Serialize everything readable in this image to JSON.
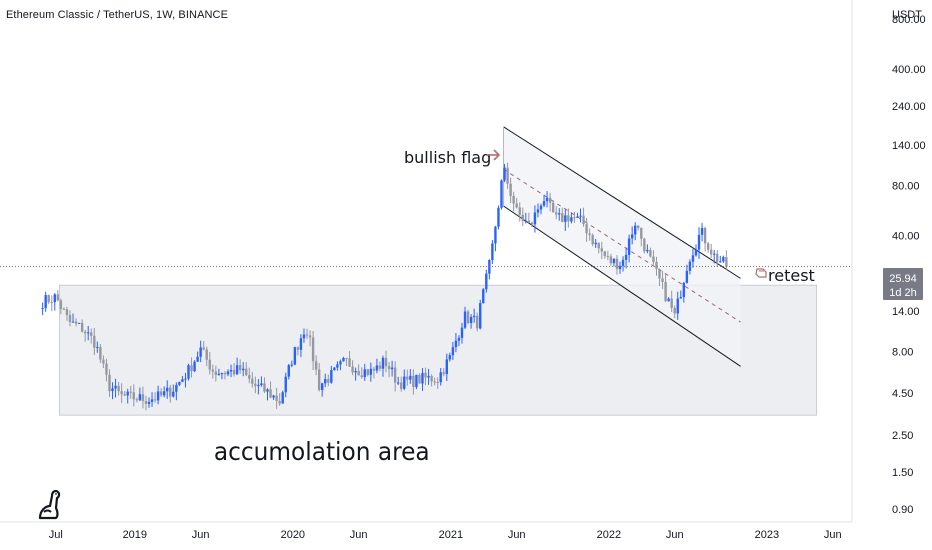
{
  "header": {
    "symbol_title": "Ethereum Classic / TetherUS, 1W, BINANCE"
  },
  "price_axis": {
    "currency": "USDT",
    "ticks": [
      "800.00",
      "400.00",
      "240.00",
      "140.00",
      "80.00",
      "40.00",
      "14.00",
      "8.00",
      "4.50",
      "2.50",
      "1.50",
      "0.90"
    ],
    "current_price": "25.94",
    "countdown": "1d 2h",
    "current_price_color": "#787b86"
  },
  "time_axis": {
    "ticks": [
      "Jul",
      "2019",
      "Jun",
      "2020",
      "Jun",
      "2021",
      "Jun",
      "2022",
      "Jun",
      "2023",
      "Jun"
    ]
  },
  "annotations": {
    "bullish_flag": "bullish flag",
    "retest": "retest",
    "accumulation": "accumolation area"
  },
  "colors": {
    "up": "#2962ff",
    "down": "#9598a1",
    "channel": "#131722",
    "zone_fill": "#eceef2",
    "arrow": "#b2706a"
  },
  "icons": {
    "logo": "tradingview-dino-icon",
    "bullish_arrow": "right-arrow-icon",
    "retest_arrow": "hand-pointer-icon"
  },
  "chart_data": {
    "type": "candlestick",
    "scale": "log",
    "x_range": [
      "2018-05",
      "2023-06"
    ],
    "y_range": [
      0.75,
      1200
    ],
    "close_series": [
      [
        "2018-06",
        16
      ],
      [
        "2018-07",
        17
      ],
      [
        "2018-08",
        12
      ],
      [
        "2018-09",
        11
      ],
      [
        "2018-10",
        9
      ],
      [
        "2018-11",
        5
      ],
      [
        "2018-12",
        4.3
      ],
      [
        "2019-01",
        4.2
      ],
      [
        "2019-02",
        4.1
      ],
      [
        "2019-03",
        4.3
      ],
      [
        "2019-04",
        4.8
      ],
      [
        "2019-05",
        6.0
      ],
      [
        "2019-06",
        8.2
      ],
      [
        "2019-07",
        6.0
      ],
      [
        "2019-08",
        6.0
      ],
      [
        "2019-09",
        6.2
      ],
      [
        "2019-10",
        5.0
      ],
      [
        "2019-11",
        4.6
      ],
      [
        "2019-12",
        4.0
      ],
      [
        "2020-01",
        7.5
      ],
      [
        "2020-02",
        11.5
      ],
      [
        "2020-03",
        5.0
      ],
      [
        "2020-04",
        5.8
      ],
      [
        "2020-05",
        7.0
      ],
      [
        "2020-06",
        6.2
      ],
      [
        "2020-07",
        6.0
      ],
      [
        "2020-08",
        7.0
      ],
      [
        "2020-09",
        5.2
      ],
      [
        "2020-10",
        5.3
      ],
      [
        "2020-11",
        5.5
      ],
      [
        "2020-12",
        5.5
      ],
      [
        "2021-01",
        7.5
      ],
      [
        "2021-02",
        13
      ],
      [
        "2021-03",
        12
      ],
      [
        "2021-04",
        28
      ],
      [
        "2021-05",
        100
      ],
      [
        "2021-06",
        55
      ],
      [
        "2021-07",
        45
      ],
      [
        "2021-08",
        68
      ],
      [
        "2021-09",
        50
      ],
      [
        "2021-10",
        52
      ],
      [
        "2021-11",
        48
      ],
      [
        "2021-12",
        35
      ],
      [
        "2022-01",
        28
      ],
      [
        "2022-02",
        27
      ],
      [
        "2022-03",
        48
      ],
      [
        "2022-04",
        30
      ],
      [
        "2022-05",
        20
      ],
      [
        "2022-06",
        13
      ],
      [
        "2022-07",
        28
      ],
      [
        "2022-08",
        42
      ],
      [
        "2022-09",
        30
      ],
      [
        "2022-10",
        25.94
      ]
    ],
    "accumulation_zone": {
      "x_range": [
        "2018-05",
        "2023-05"
      ],
      "y_range": [
        3.3,
        20
      ]
    },
    "channel": {
      "upper": [
        [
          "2021-05",
          180
        ],
        [
          "2022-11",
          22
        ]
      ],
      "lower": [
        [
          "2021-05",
          60
        ],
        [
          "2022-11",
          6.5
        ]
      ],
      "middle": [
        [
          "2021-05",
          100
        ],
        [
          "2022-11",
          12
        ]
      ]
    }
  }
}
